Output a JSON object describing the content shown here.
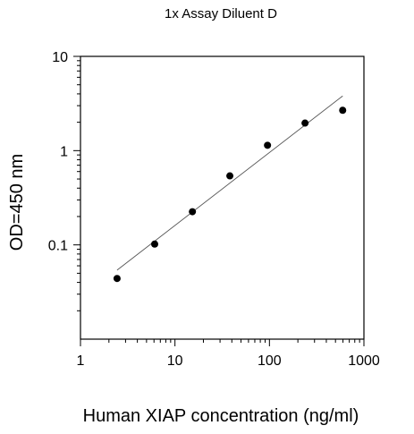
{
  "chart_data": {
    "type": "scatter",
    "title": "1x Assay Diluent D",
    "xlabel": "Human XIAP concentration (ng/ml)",
    "ylabel": "OD=450 nm",
    "xscale": "log",
    "yscale": "log",
    "xlim": [
      1,
      1000
    ],
    "ylim": [
      0.01,
      10
    ],
    "xticks": [
      1,
      10,
      100,
      1000
    ],
    "xtick_labels": [
      "1",
      "10",
      "100",
      "1000"
    ],
    "yticks": [
      0.1,
      1,
      10
    ],
    "ytick_labels": [
      "0.1",
      "1",
      "10"
    ],
    "grid": false,
    "legend": "none",
    "series": [
      {
        "x": [
          2.44,
          6.1,
          15.3,
          38.1,
          95.4,
          238,
          596
        ],
        "y": [
          0.044,
          0.102,
          0.225,
          0.54,
          1.14,
          1.96,
          2.68
        ],
        "marker": "circle",
        "color": "#000000"
      }
    ],
    "fit_line": {
      "x": [
        2.44,
        596
      ],
      "y": [
        0.054,
        3.8
      ],
      "color": "#555555"
    }
  }
}
